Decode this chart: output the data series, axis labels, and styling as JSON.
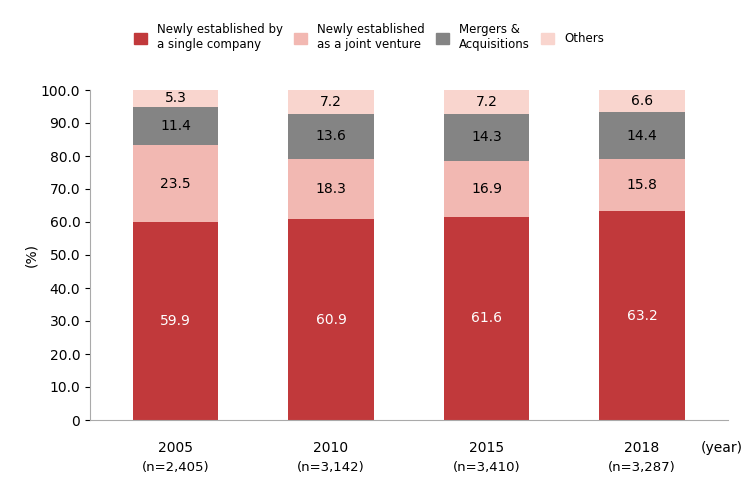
{
  "year_parts": [
    "2005",
    "2010",
    "2015",
    "2018"
  ],
  "n_parts": [
    "(n=2,405)",
    "(n=3,142)",
    "(n=3,410)",
    "(n=3,287)"
  ],
  "year_label": "(year)",
  "ylabel": "(%)",
  "categories": [
    "Newly established by\na single company",
    "Newly established\nas a joint venture",
    "Mergers &\nAcquisitions",
    "Others"
  ],
  "values": [
    [
      59.9,
      60.9,
      61.6,
      63.2
    ],
    [
      23.5,
      18.3,
      16.9,
      15.8
    ],
    [
      11.4,
      13.6,
      14.3,
      14.4
    ],
    [
      5.3,
      7.2,
      7.2,
      6.6
    ]
  ],
  "colors": [
    "#C1393B",
    "#F2B8B2",
    "#848484",
    "#F9D5CE"
  ],
  "bar_width": 0.55,
  "ylim": [
    0,
    100
  ],
  "yticks": [
    0,
    10.0,
    20.0,
    30.0,
    40.0,
    50.0,
    60.0,
    70.0,
    80.0,
    90.0,
    100.0
  ],
  "label_fontsize": 10,
  "tick_fontsize": 10,
  "background_color": "#ffffff"
}
